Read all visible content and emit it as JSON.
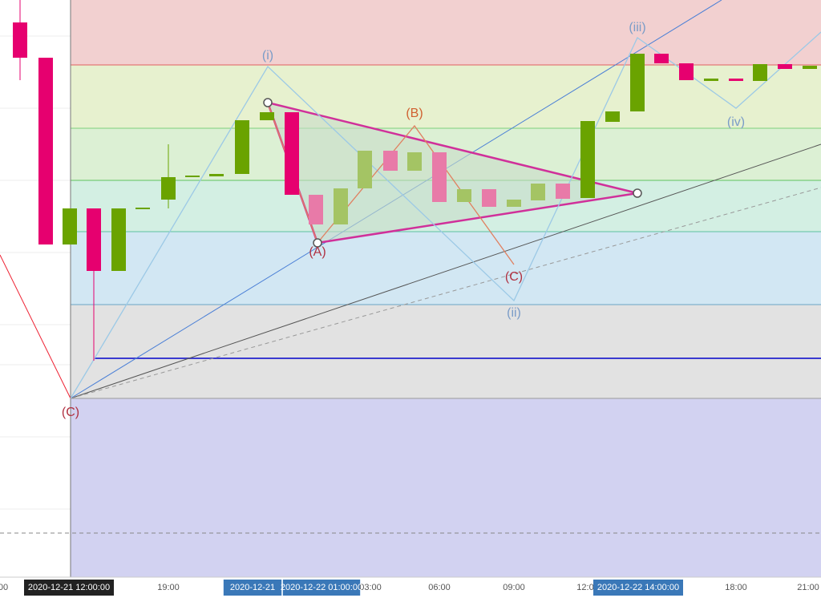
{
  "wave_labels": {
    "i": "(i)",
    "ii": "(ii)",
    "iii": "(iii)",
    "iv": "(iv)",
    "a": "(A)",
    "b": "(B)",
    "c_inner": "(C)",
    "c_outer": "(C)"
  },
  "time_axis": {
    "labels": [
      "00",
      "19:00",
      "03:00",
      "06:00",
      "09:00",
      "12:0",
      "18:00",
      "21:00"
    ],
    "cursor_start": "2020-12-21 12:00:00",
    "range_start": "2020-12-21",
    "range_mid": "2020-12-22 01:00:00",
    "cursor_end": "2020-12-22 14:00:00"
  }
}
